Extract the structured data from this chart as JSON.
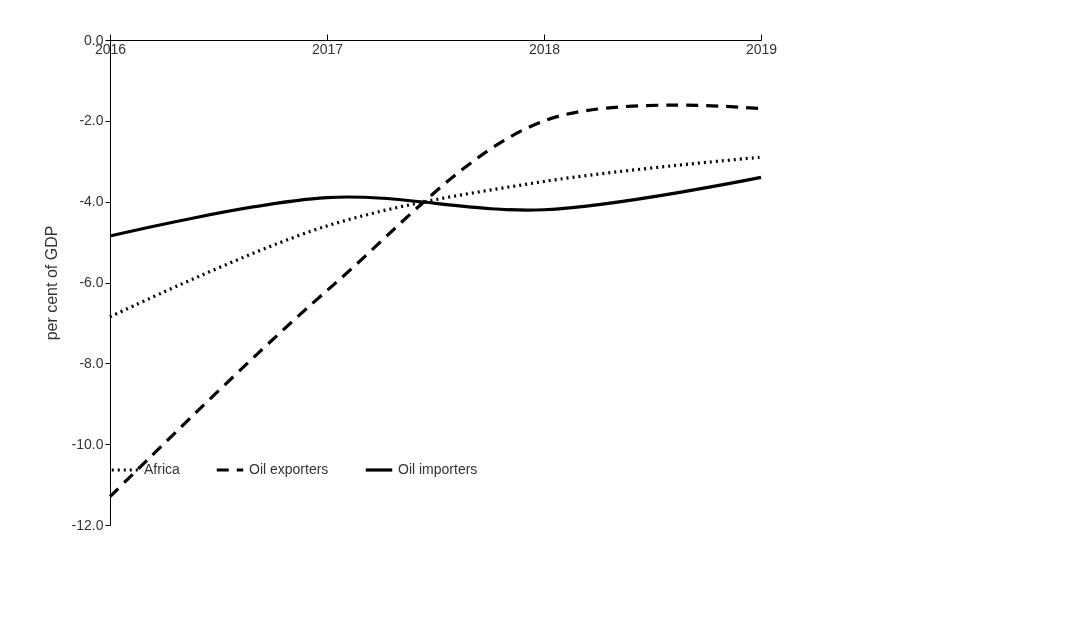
{
  "chart_data": {
    "type": "line",
    "ylabel": "per cent of GDP",
    "x": [
      2016,
      2017,
      2018,
      2019
    ],
    "xlim": [
      2016,
      2019
    ],
    "xticks": [
      2016,
      2017,
      2018,
      2019
    ],
    "ylim": [
      -12,
      0
    ],
    "yticks": [
      {
        "value": 0,
        "label": "0.0"
      },
      {
        "value": -2,
        "label": "-2.0"
      },
      {
        "value": -4,
        "label": "-4.0"
      },
      {
        "value": -6,
        "label": "-6.0"
      },
      {
        "value": -8,
        "label": "-8.0"
      },
      {
        "value": -10,
        "label": "-10.0"
      },
      {
        "value": -12,
        "label": "-12.0"
      }
    ],
    "series": [
      {
        "name": "Africa",
        "color": "#000000",
        "line_style": "dotted",
        "values": [
          -6.85,
          -4.6,
          -3.5,
          -2.9
        ]
      },
      {
        "name": "Oil exporters",
        "color": "#000000",
        "line_style": "dashed",
        "values": [
          -11.3,
          -6.2,
          -2.0,
          -1.7
        ]
      },
      {
        "name": "Oil importers",
        "color": "#000000",
        "line_style": "solid",
        "values": [
          -4.85,
          -3.9,
          -4.2,
          -3.4
        ]
      }
    ],
    "grid": false,
    "legend": "bottom",
    "marker": "none"
  }
}
